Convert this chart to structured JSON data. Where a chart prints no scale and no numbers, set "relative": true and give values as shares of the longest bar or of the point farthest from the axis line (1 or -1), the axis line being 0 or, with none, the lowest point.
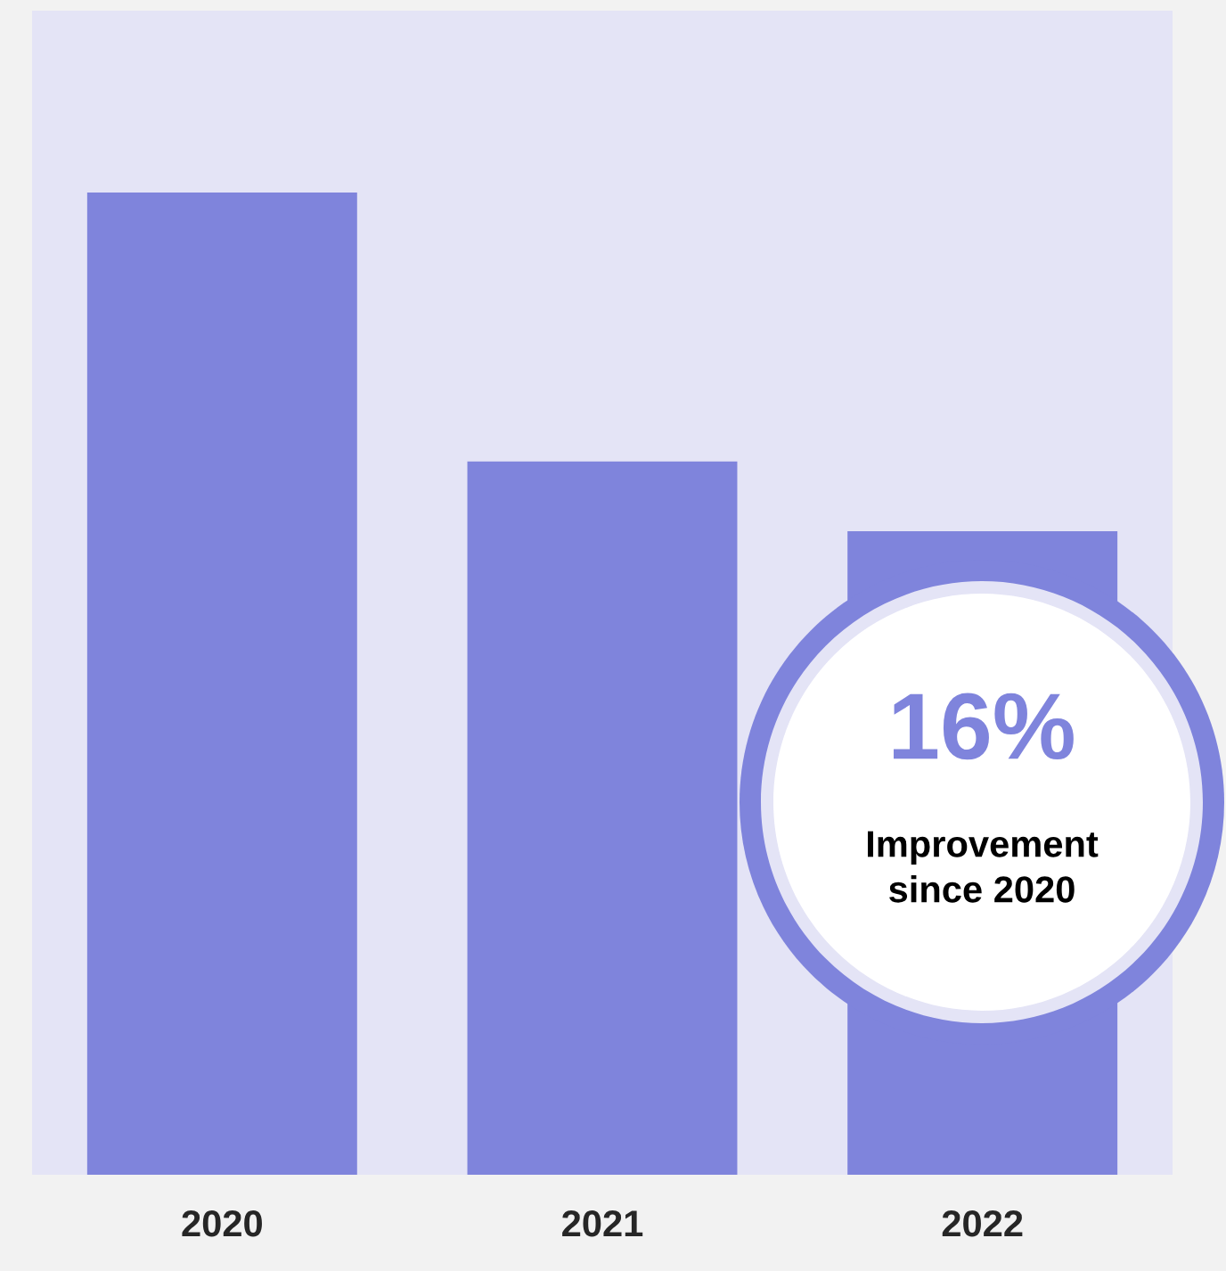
{
  "chart_data": {
    "type": "bar",
    "relative": true,
    "categories": [
      "2020",
      "2021",
      "2022"
    ],
    "values": [
      1,
      0.726,
      0.655
    ],
    "color": "#7f84dc",
    "annotations": [
      "16%",
      "Improvement\nsince 2020"
    ]
  }
}
